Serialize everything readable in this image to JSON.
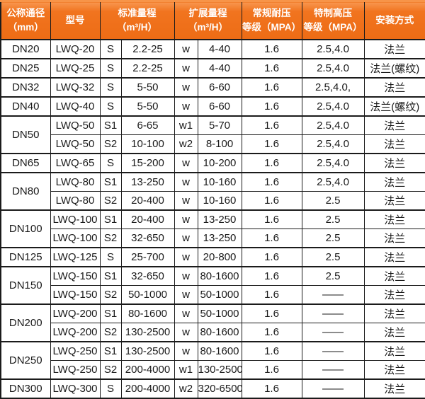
{
  "colors": {
    "header_bg": "#f1741f",
    "header_bg_highlight": "#f8964e",
    "header_text": "#ffffff",
    "border": "#1b1b1b",
    "body_text": "#1a1a1a",
    "body_bg": "#ffffff"
  },
  "table": {
    "headers": [
      {
        "id": "diameter",
        "span": 1,
        "lines": [
          "公称通径",
          "（mm）"
        ]
      },
      {
        "id": "model",
        "span": 1,
        "lines": [
          "型号"
        ]
      },
      {
        "id": "standard-range",
        "span": 2,
        "lines": [
          "标准量程",
          "（m³/H）"
        ]
      },
      {
        "id": "extended-range",
        "span": 2,
        "lines": [
          "扩展量程",
          "（m³/H）"
        ]
      },
      {
        "id": "normal-pressure",
        "span": 1,
        "lines": [
          "常规耐压",
          "等级（MPA）"
        ]
      },
      {
        "id": "special-pressure",
        "span": 1,
        "lines": [
          "特制高压",
          "等级（MPA）"
        ]
      },
      {
        "id": "installation",
        "span": 1,
        "lines": [
          "安装方式"
        ]
      }
    ],
    "rows": [
      {
        "group_start": true,
        "cells": [
          {
            "t": "DN20",
            "rs": 1
          },
          {
            "t": "LWQ-20"
          },
          {
            "t": "S"
          },
          {
            "t": "2.2-25"
          },
          {
            "t": "w"
          },
          {
            "t": "4-40"
          },
          {
            "t": "1.6"
          },
          {
            "t": "2.5,4.0"
          },
          {
            "t": "法兰"
          }
        ]
      },
      {
        "group_start": true,
        "cells": [
          {
            "t": "DN25",
            "rs": 1
          },
          {
            "t": "LWQ-25"
          },
          {
            "t": "S"
          },
          {
            "t": "2.2-25"
          },
          {
            "t": "w"
          },
          {
            "t": "4-40"
          },
          {
            "t": "1.6"
          },
          {
            "t": "2.5,4.0"
          },
          {
            "t": "法兰(螺纹)"
          }
        ]
      },
      {
        "group_start": true,
        "cells": [
          {
            "t": "DN32",
            "rs": 1
          },
          {
            "t": "LWQ-32"
          },
          {
            "t": "S"
          },
          {
            "t": "5-50"
          },
          {
            "t": "w"
          },
          {
            "t": "6-60"
          },
          {
            "t": "1.6"
          },
          {
            "t": "2.5,4.0,"
          },
          {
            "t": "法兰"
          }
        ]
      },
      {
        "group_start": true,
        "cells": [
          {
            "t": "DN40",
            "rs": 1
          },
          {
            "t": "LWQ-40"
          },
          {
            "t": "S"
          },
          {
            "t": "5-50"
          },
          {
            "t": "w"
          },
          {
            "t": "6-60"
          },
          {
            "t": "1.6"
          },
          {
            "t": "2.5,4.0"
          },
          {
            "t": "法兰(螺纹)"
          }
        ]
      },
      {
        "group_start": true,
        "cells": [
          {
            "t": "DN50",
            "rs": 2
          },
          {
            "t": "LWQ-50"
          },
          {
            "t": "S1"
          },
          {
            "t": "6-65"
          },
          {
            "t": "w1"
          },
          {
            "t": "5-70"
          },
          {
            "t": "1.6"
          },
          {
            "t": "2.5,4.0"
          },
          {
            "t": "法兰"
          }
        ]
      },
      {
        "group_start": false,
        "cells": [
          {
            "t": "LWQ-50"
          },
          {
            "t": "S2"
          },
          {
            "t": "10-100"
          },
          {
            "t": "w2"
          },
          {
            "t": "8-100"
          },
          {
            "t": "1.6"
          },
          {
            "t": "2.5,4.0"
          },
          {
            "t": "法兰"
          }
        ]
      },
      {
        "group_start": true,
        "cells": [
          {
            "t": "DN65",
            "rs": 1
          },
          {
            "t": "LWQ-65"
          },
          {
            "t": "S"
          },
          {
            "t": "15-200"
          },
          {
            "t": "w"
          },
          {
            "t": "10-200"
          },
          {
            "t": "1.6"
          },
          {
            "t": "2.5,4.0"
          },
          {
            "t": "法兰"
          }
        ]
      },
      {
        "group_start": true,
        "cells": [
          {
            "t": "DN80",
            "rs": 2
          },
          {
            "t": "LWQ-80"
          },
          {
            "t": "S1"
          },
          {
            "t": "13-250"
          },
          {
            "t": "w"
          },
          {
            "t": "10-160"
          },
          {
            "t": "1.6"
          },
          {
            "t": "2.5,4.0"
          },
          {
            "t": "法兰"
          }
        ]
      },
      {
        "group_start": false,
        "cells": [
          {
            "t": "LWQ-80"
          },
          {
            "t": "S2"
          },
          {
            "t": "20-400"
          },
          {
            "t": "w"
          },
          {
            "t": "10-160"
          },
          {
            "t": "1.6"
          },
          {
            "t": "2.5"
          },
          {
            "t": "法兰"
          }
        ]
      },
      {
        "group_start": true,
        "cells": [
          {
            "t": "DN100",
            "rs": 2
          },
          {
            "t": "LWQ-100"
          },
          {
            "t": "S1"
          },
          {
            "t": "20-400"
          },
          {
            "t": "w"
          },
          {
            "t": "13-250"
          },
          {
            "t": "1.6"
          },
          {
            "t": "2.5"
          },
          {
            "t": "法兰"
          }
        ]
      },
      {
        "group_start": false,
        "cells": [
          {
            "t": "LWQ-100"
          },
          {
            "t": "S2"
          },
          {
            "t": "32-650"
          },
          {
            "t": "w"
          },
          {
            "t": "13-250"
          },
          {
            "t": "1.6"
          },
          {
            "t": "2.5"
          },
          {
            "t": "法兰"
          }
        ]
      },
      {
        "group_start": true,
        "cells": [
          {
            "t": "DN125",
            "rs": 1
          },
          {
            "t": "LWQ-125"
          },
          {
            "t": "S"
          },
          {
            "t": "25-700"
          },
          {
            "t": "w"
          },
          {
            "t": "20-800"
          },
          {
            "t": "1.6"
          },
          {
            "t": "2.5"
          },
          {
            "t": "法兰"
          }
        ]
      },
      {
        "group_start": true,
        "cells": [
          {
            "t": "DN150",
            "rs": 2
          },
          {
            "t": "LWQ-150"
          },
          {
            "t": "S1"
          },
          {
            "t": "32-650"
          },
          {
            "t": "w"
          },
          {
            "t": "80-1600"
          },
          {
            "t": "1.6"
          },
          {
            "t": "2.5"
          },
          {
            "t": "法兰"
          }
        ]
      },
      {
        "group_start": false,
        "cells": [
          {
            "t": "LWQ-150"
          },
          {
            "t": "S2"
          },
          {
            "t": "50-1000"
          },
          {
            "t": "w"
          },
          {
            "t": "50-1000"
          },
          {
            "t": "1.6"
          },
          {
            "t": "——"
          },
          {
            "t": "法兰"
          }
        ]
      },
      {
        "group_start": true,
        "cells": [
          {
            "t": "DN200",
            "rs": 2
          },
          {
            "t": "LWQ-200"
          },
          {
            "t": "S1"
          },
          {
            "t": "80-1600"
          },
          {
            "t": "w"
          },
          {
            "t": "50-1000"
          },
          {
            "t": "1.6"
          },
          {
            "t": "——"
          },
          {
            "t": "法兰"
          }
        ]
      },
      {
        "group_start": false,
        "cells": [
          {
            "t": "LWQ-200"
          },
          {
            "t": "S2"
          },
          {
            "t": "130-2500"
          },
          {
            "t": "w"
          },
          {
            "t": "80-1600"
          },
          {
            "t": "1.6"
          },
          {
            "t": "——"
          },
          {
            "t": "法兰"
          }
        ]
      },
      {
        "group_start": true,
        "cells": [
          {
            "t": "DN250",
            "rs": 2
          },
          {
            "t": "LWQ-250"
          },
          {
            "t": "S1"
          },
          {
            "t": "130-2500"
          },
          {
            "t": "w"
          },
          {
            "t": "80-1600"
          },
          {
            "t": "1.6"
          },
          {
            "t": "——"
          },
          {
            "t": "法兰"
          }
        ]
      },
      {
        "group_start": false,
        "cells": [
          {
            "t": "LWQ-250"
          },
          {
            "t": "S2"
          },
          {
            "t": "200-4000"
          },
          {
            "t": "w1"
          },
          {
            "t": "130-2500"
          },
          {
            "t": "1.6"
          },
          {
            "t": "——"
          },
          {
            "t": "法兰"
          }
        ]
      },
      {
        "group_start": true,
        "cells": [
          {
            "t": "DN300",
            "rs": 1
          },
          {
            "t": "LWQ-300"
          },
          {
            "t": "S"
          },
          {
            "t": "200-4000"
          },
          {
            "t": "w2"
          },
          {
            "t": "320-6500"
          },
          {
            "t": "1.6"
          },
          {
            "t": "——"
          },
          {
            "t": "法兰"
          }
        ]
      }
    ]
  }
}
